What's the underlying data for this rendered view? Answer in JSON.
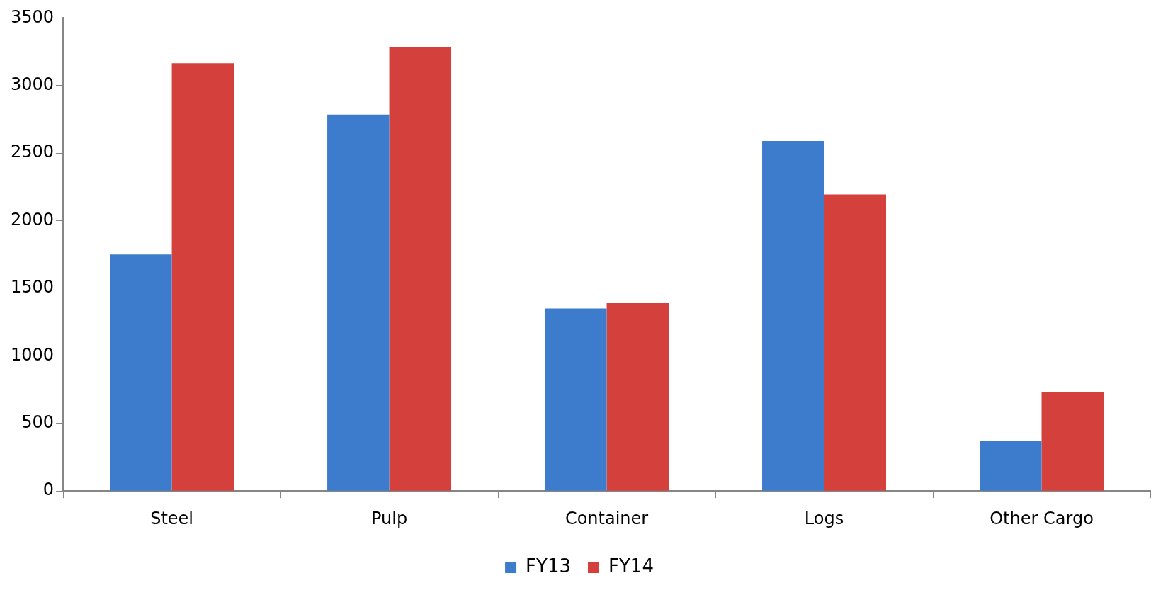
{
  "chart_data": {
    "type": "bar",
    "categories": [
      "Steel",
      "Pulp",
      "Container",
      "Logs",
      "Other Cargo"
    ],
    "series": [
      {
        "name": "FY13",
        "color": "#3d7ccc",
        "values": [
          1750,
          2785,
          1350,
          2590,
          370
        ]
      },
      {
        "name": "FY14",
        "color": "#d4403c",
        "values": [
          3165,
          3285,
          1390,
          2195,
          735
        ]
      }
    ],
    "ylim": [
      0,
      3500
    ],
    "yticks": [
      0,
      500,
      1000,
      1500,
      2000,
      2500,
      3000,
      3500
    ],
    "grid": false,
    "legend": "bottom"
  }
}
